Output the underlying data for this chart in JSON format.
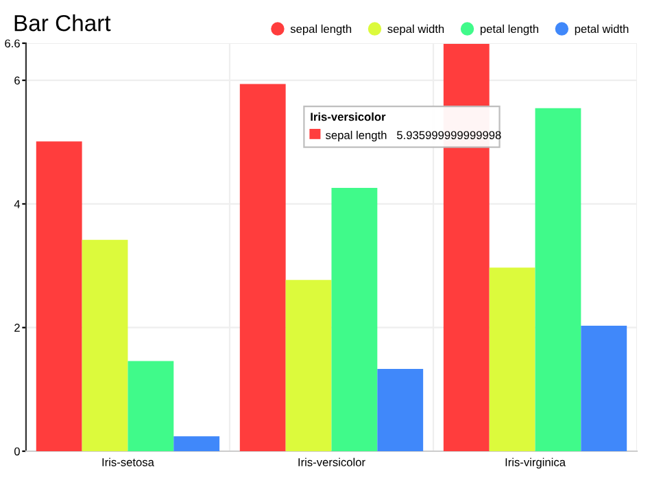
{
  "chart_data": {
    "type": "bar",
    "title": "Bar Chart",
    "categories": [
      "Iris-setosa",
      "Iris-versicolor",
      "Iris-virginica"
    ],
    "series": [
      {
        "name": "sepal length",
        "color": "#ff3d3d",
        "values": [
          5.01,
          5.94,
          6.59
        ]
      },
      {
        "name": "sepal width",
        "color": "#dcfa3c",
        "values": [
          3.42,
          2.77,
          2.97
        ]
      },
      {
        "name": "petal length",
        "color": "#40fa8a",
        "values": [
          1.46,
          4.26,
          5.55
        ]
      },
      {
        "name": "petal width",
        "color": "#4088fa",
        "values": [
          0.24,
          1.33,
          2.03
        ]
      }
    ],
    "ylim": [
      0,
      6.6
    ],
    "yticks": [
      0,
      2,
      4,
      6,
      6.6
    ],
    "grid": true,
    "legend": "top right",
    "annotations": [
      "Iris-versicolor",
      "sepal length   5.935999999999998"
    ]
  }
}
